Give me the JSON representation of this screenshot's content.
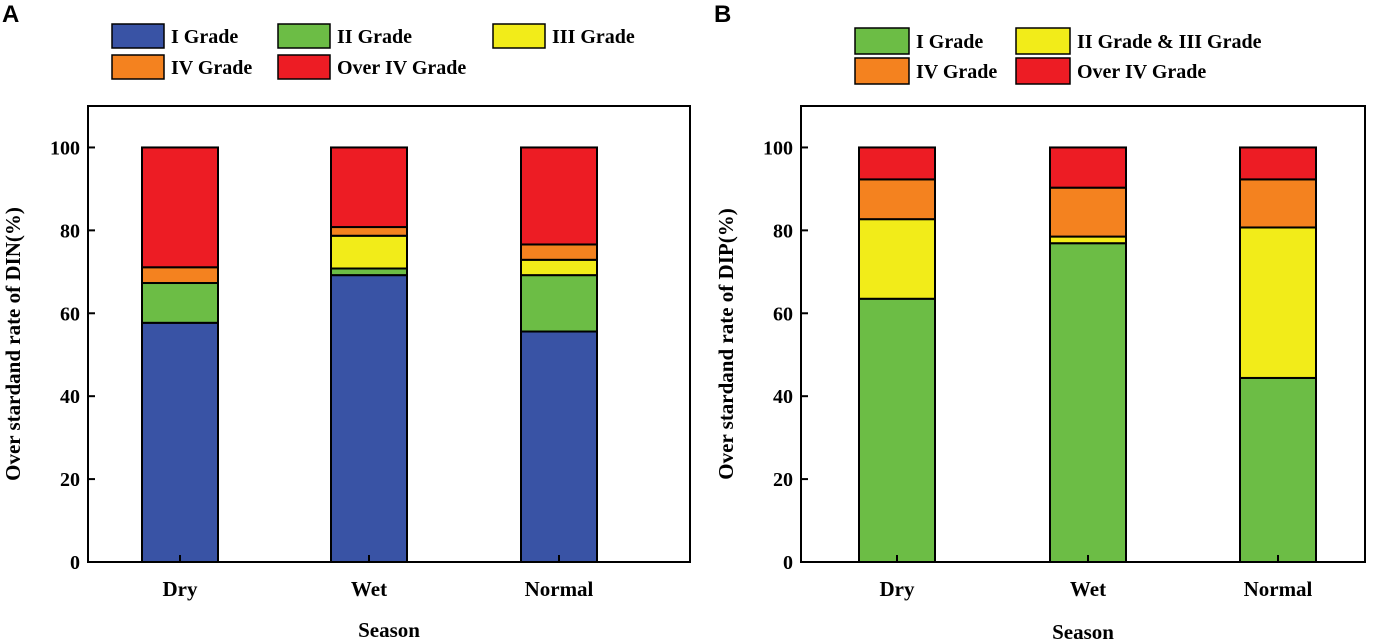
{
  "chart_data": [
    {
      "panel": "A",
      "type": "bar",
      "stacked": true,
      "xlabel": "Season",
      "ylabel": "Over stardand rate of DIN(%)",
      "ylim": [
        0,
        110
      ],
      "yticks": [
        0,
        20,
        40,
        60,
        80,
        100
      ],
      "yticks_text": [
        "0",
        "20",
        "40",
        "60",
        "80",
        "100"
      ],
      "categories": [
        "Dry",
        "Wet",
        "Normal"
      ],
      "legend_rows": [
        [
          "I Grade",
          "II Grade",
          "III Grade"
        ],
        [
          "IV Grade",
          "Over IV Grade"
        ]
      ],
      "series": [
        {
          "name": "I Grade",
          "color": "#3953a5",
          "values": [
            57.7,
            69.2,
            55.6
          ]
        },
        {
          "name": "II Grade",
          "color": "#6cbd45",
          "values": [
            9.6,
            1.6,
            13.6
          ]
        },
        {
          "name": "III Grade",
          "color": "#f2ec19",
          "values": [
            0,
            7.9,
            3.7
          ]
        },
        {
          "name": "IV Grade",
          "color": "#f4821f",
          "values": [
            3.8,
            2.1,
            3.7
          ]
        },
        {
          "name": "Over IV Grade",
          "color": "#ed1c24",
          "values": [
            28.9,
            19.2,
            23.4
          ]
        }
      ]
    },
    {
      "panel": "B",
      "type": "bar",
      "stacked": true,
      "xlabel": "Season",
      "ylabel": "Over stardand rate of DIP(%)",
      "ylim": [
        0,
        110
      ],
      "yticks": [
        0,
        20,
        40,
        60,
        80,
        100
      ],
      "yticks_text": [
        "0",
        "20",
        "40",
        "60",
        "80",
        "100"
      ],
      "categories": [
        "Dry",
        "Wet",
        "Normal"
      ],
      "legend_rows": [
        [
          "I Grade",
          "II Grade & III Grade"
        ],
        [
          "IV Grade",
          "Over IV Grade"
        ]
      ],
      "series": [
        {
          "name": "I Grade",
          "color": "#6cbd45",
          "values": [
            63.5,
            76.9,
            44.4
          ]
        },
        {
          "name": "II Grade & III Grade",
          "color": "#f2ec19",
          "values": [
            19.2,
            1.6,
            36.3
          ]
        },
        {
          "name": "IV Grade",
          "color": "#f4821f",
          "values": [
            9.6,
            11.8,
            11.6
          ]
        },
        {
          "name": "Over IV Grade",
          "color": "#ed1c24",
          "values": [
            7.7,
            9.7,
            7.7
          ]
        }
      ]
    }
  ]
}
